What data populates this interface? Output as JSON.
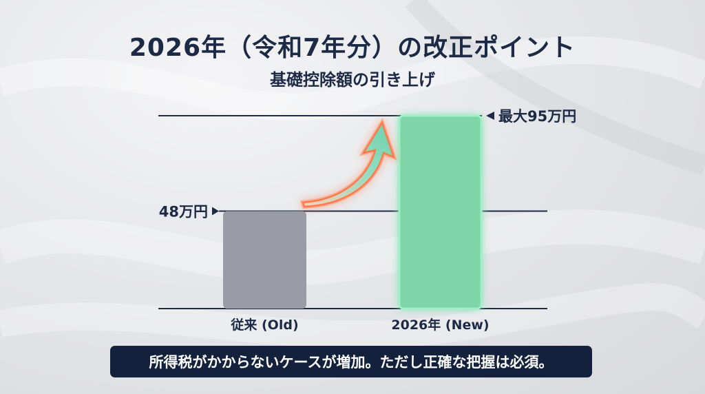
{
  "header": {
    "title": "2026年（令和7年分）の改正ポイント",
    "subtitle": "基礎控除額の引き上げ"
  },
  "chart_data": {
    "type": "bar",
    "categories": [
      "従来 (Old)",
      "2026年 (New)"
    ],
    "values": [
      48,
      95
    ],
    "unit": "万円",
    "ylim": [
      0,
      95
    ],
    "reference_labels": [
      "48万円",
      "最大95万円"
    ],
    "bar_colors": [
      "#9a9ca5",
      "#7ed6a8"
    ],
    "annotation": "increase-arrow"
  },
  "caption": {
    "text": "所得税がかからないケースが増加。ただし正確な把握は必須。"
  },
  "colors": {
    "navy": "#1d2a45",
    "arrow": "#ff7a4a",
    "new_bar_glow": "#9ff0c4"
  }
}
